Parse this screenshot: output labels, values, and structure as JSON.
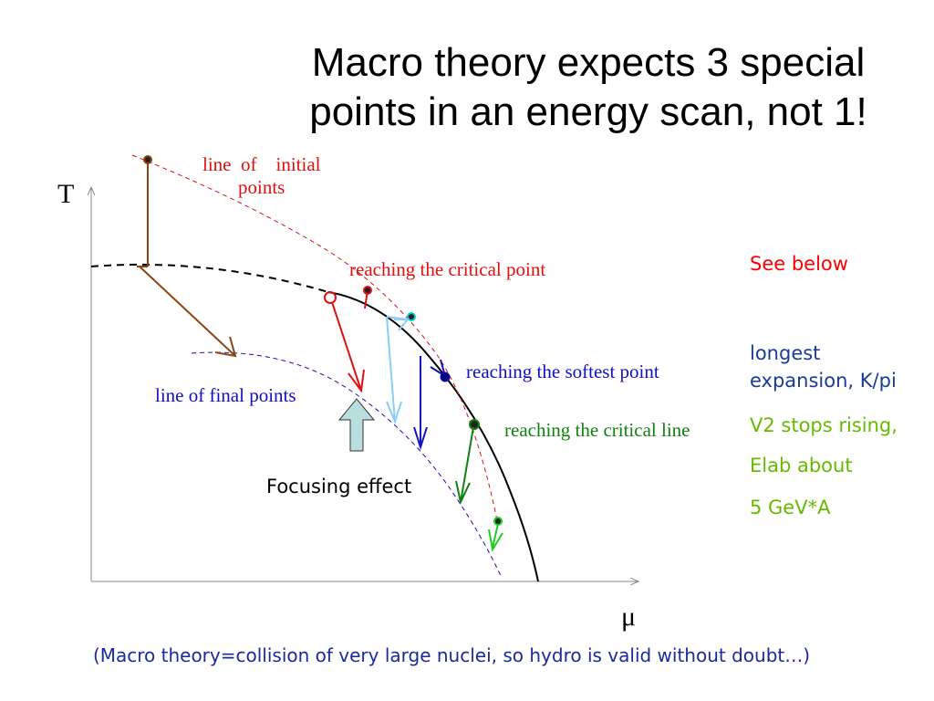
{
  "title_line1": "Macro theory expects 3 special",
  "title_line2": "points in an energy scan, not 1!",
  "axis": {
    "y_label": "T",
    "x_label": "μ"
  },
  "labels": {
    "initial_line_1": "line  of    initial",
    "initial_line_2": "points",
    "critical_point": "reaching the critical point",
    "softest_point": "reaching the softest point",
    "critical_line": "reaching the critical line",
    "final_points": "line of final points",
    "focusing": "Focusing effect"
  },
  "side_notes": {
    "see_below": "See below",
    "longest_1": "longest",
    "longest_2": "expansion, K/pi",
    "v2": "V2 stops rising,",
    "elab": "Elab about",
    "gev": "5 GeV*A"
  },
  "footer": "(Macro theory=collision of very large nuclei, so hydro is valid without doubt…)",
  "colors": {
    "red": "#e01010",
    "blue": "#1010c0",
    "green": "#108010",
    "brown": "#8b4513",
    "light_blue": "#87cefa",
    "bright_green": "#22cc22",
    "side_red": "#ff0000",
    "side_blue": "#1a3a9c",
    "side_green": "#66bb00",
    "arrow_fill": "#b9dede"
  }
}
